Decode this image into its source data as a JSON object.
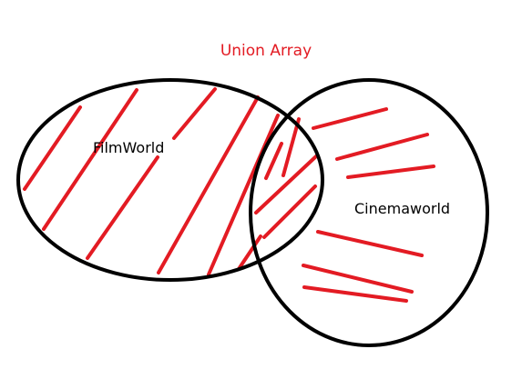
{
  "diagram": {
    "title": "Union Array",
    "sets": [
      {
        "label": "FilmWorld"
      },
      {
        "label": "Cinemaworld"
      }
    ]
  },
  "colors": {
    "outline": "#000000",
    "hatch": "#e31b23",
    "title": "#e31b23",
    "text": "#000000",
    "background": "#ffffff"
  }
}
